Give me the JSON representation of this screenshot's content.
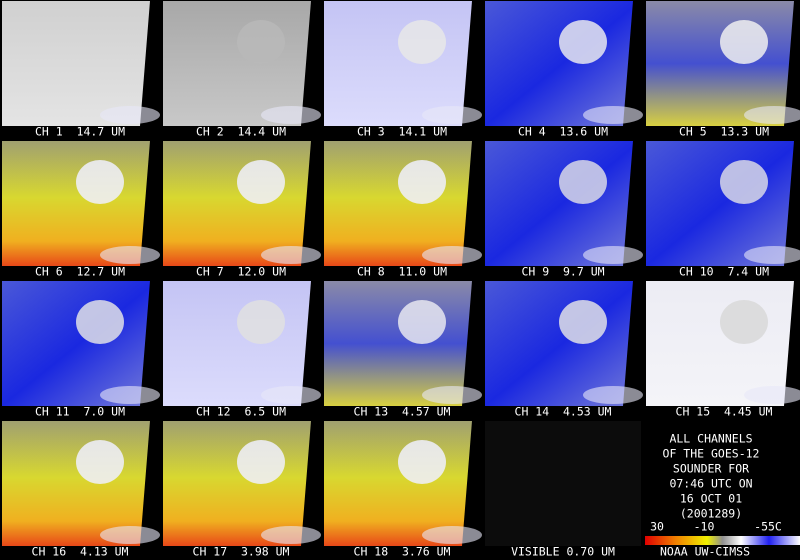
{
  "panels": [
    {
      "label": "CH 1  14.7 UM"
    },
    {
      "label": "CH 2  14.4 UM"
    },
    {
      "label": "CH 3  14.1 UM"
    },
    {
      "label": "CH 4  13.6 UM"
    },
    {
      "label": "CH 5  13.3 UM"
    },
    {
      "label": "CH 6  12.7 UM"
    },
    {
      "label": "CH 7  12.0 UM"
    },
    {
      "label": "CH 8  11.0 UM"
    },
    {
      "label": "CH 9  9.7 UM"
    },
    {
      "label": "CH 10  7.4 UM"
    },
    {
      "label": "CH 11  7.0 UM"
    },
    {
      "label": "CH 12  6.5 UM"
    },
    {
      "label": "CH 13  4.57 UM"
    },
    {
      "label": "CH 14  4.53 UM"
    },
    {
      "label": "CH 15  4.45 UM"
    },
    {
      "label": "CH 16  4.13 UM"
    },
    {
      "label": "CH 17  3.98 UM"
    },
    {
      "label": "CH 18  3.76 UM"
    },
    {
      "label": "VISIBLE 0.70 UM"
    }
  ],
  "caption": {
    "lines": [
      "ALL CHANNELS",
      "OF THE GOES-12",
      "SOUNDER FOR",
      "07:46 UTC ON",
      "16 OCT 01",
      "(2001289)"
    ]
  },
  "colorbar": {
    "labels": [
      "30",
      "-10",
      "-55C"
    ]
  },
  "credit": "NOAA UW-CIMSS"
}
